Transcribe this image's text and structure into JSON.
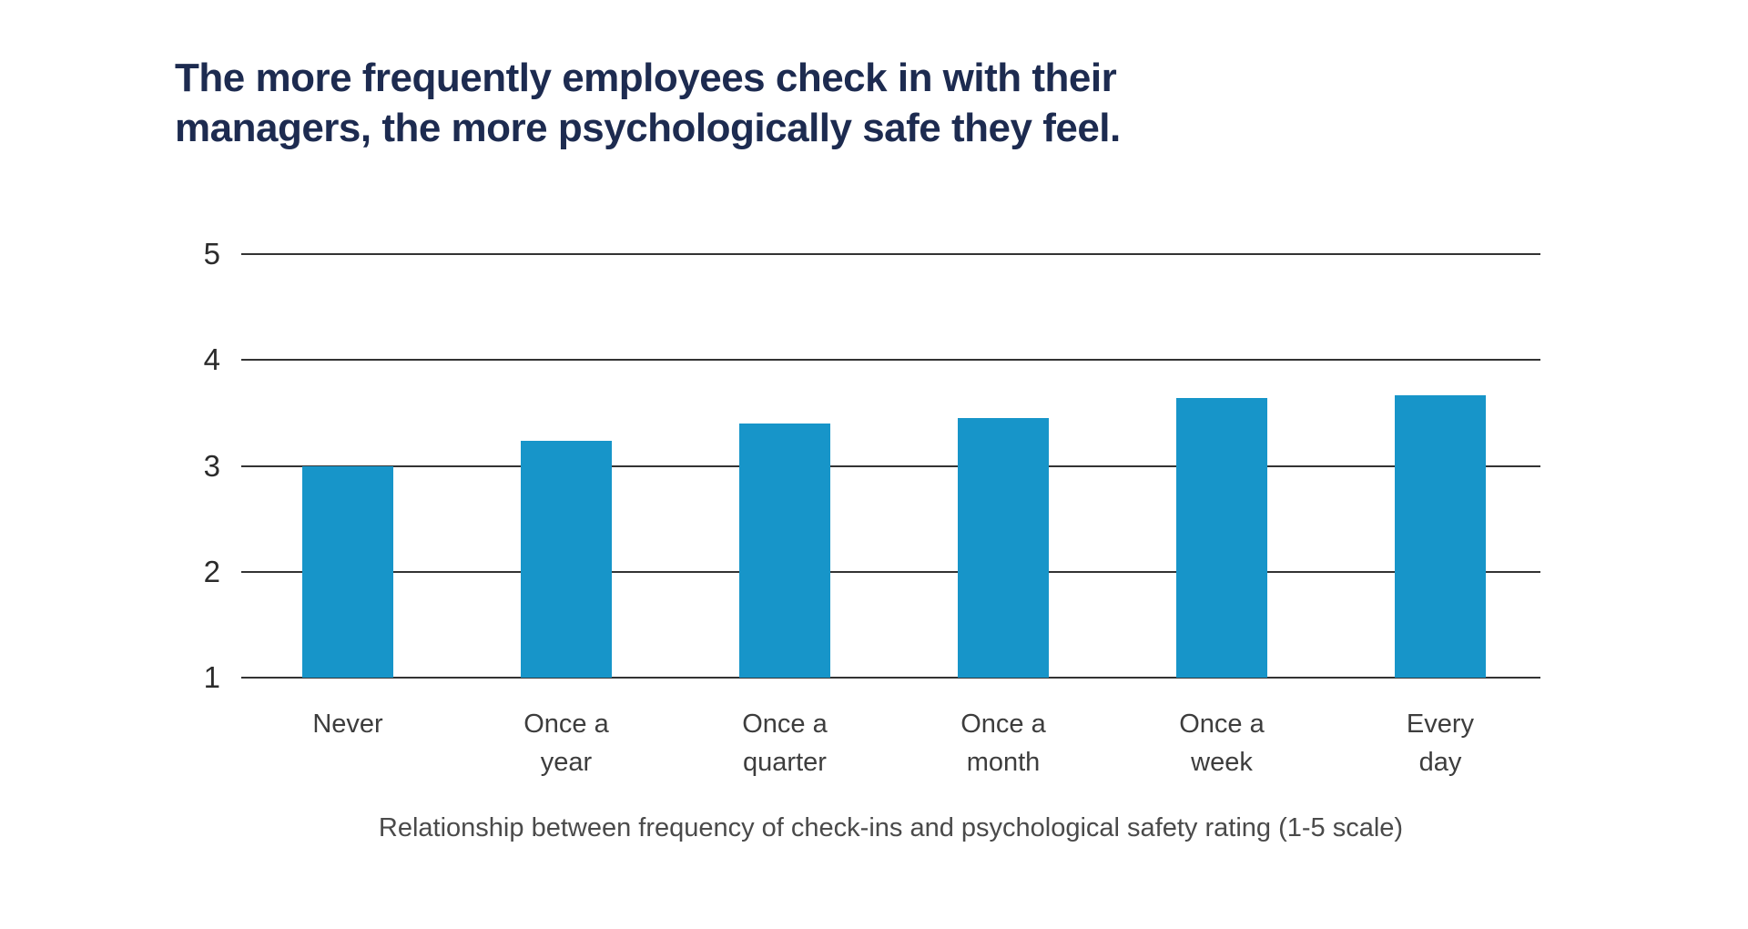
{
  "page": {
    "background_color": "#ffffff"
  },
  "chart_data": {
    "type": "bar",
    "title": "The more frequently employees check in with their managers, the more psychologically safe they feel.",
    "title_lines": [
      "The more frequently employees check in with their",
      "managers, the more psychologically safe they feel."
    ],
    "categories": [
      "Never",
      "Once a year",
      "Once a quarter",
      "Once a month",
      "Once a week",
      "Every day"
    ],
    "category_labels": [
      "Never",
      "Once a\nyear",
      "Once a\nquarter",
      "Once a\nmonth",
      "Once a\nweek",
      "Every\nday"
    ],
    "values": [
      3.0,
      3.24,
      3.4,
      3.45,
      3.64,
      3.67
    ],
    "xlabel": "Relationship between frequency of check-ins and psychological safety rating (1-5 scale)",
    "ylabel": "",
    "yticks": [
      1,
      2,
      3,
      4,
      5
    ],
    "ylim": [
      1,
      5
    ],
    "grid": true,
    "legend": false,
    "bar_color": "#1795c9",
    "title_color": "#1d2b50",
    "gridline_color": "#333333"
  }
}
